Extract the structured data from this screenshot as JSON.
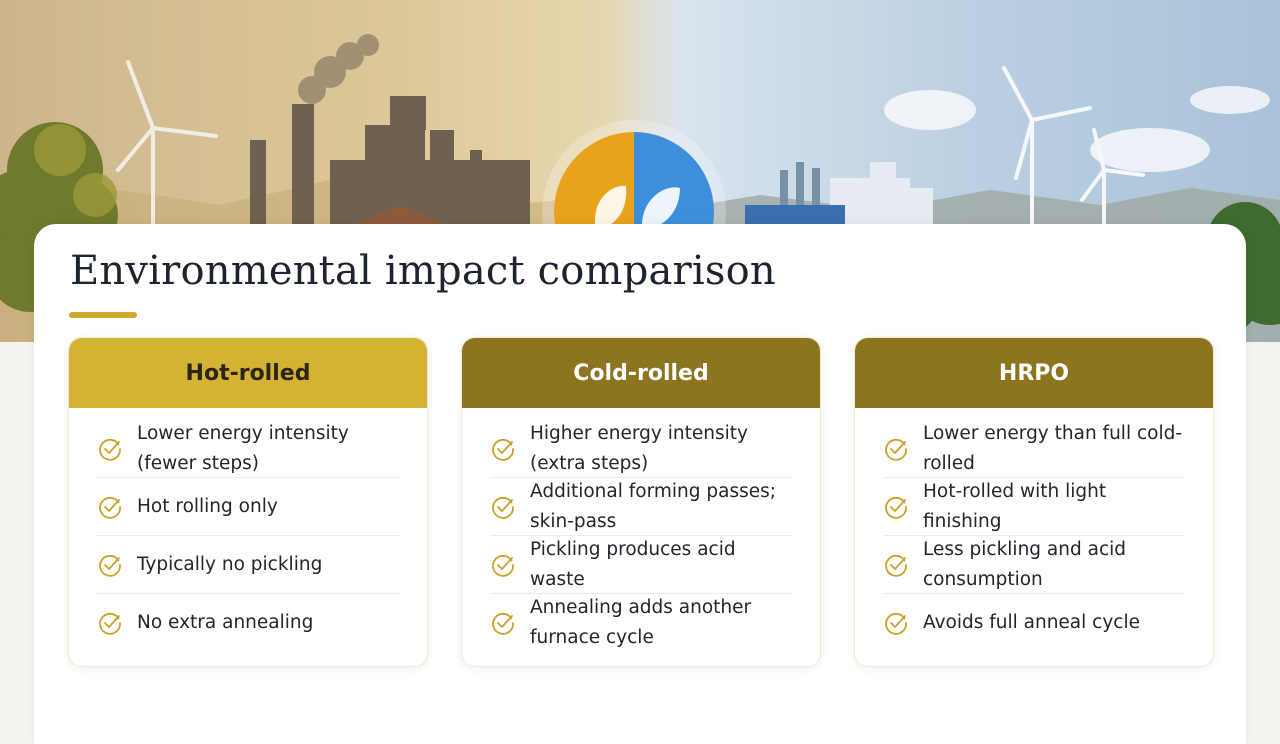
{
  "page": {
    "title": "Environmental impact comparison"
  },
  "colors": {
    "accent_gold": "#d1a82e",
    "header_hot_rolled": "#d4b233",
    "header_dark_olive": "#8d7520",
    "check_icon": "#c9a22a"
  },
  "columns": [
    {
      "heading": "Hot-rolled",
      "items": [
        "Lower energy intensity (fewer steps)",
        "Hot rolling only",
        "Typically no pickling",
        "No extra annealing"
      ]
    },
    {
      "heading": "Cold-rolled",
      "items": [
        "Higher energy intensity (extra steps)",
        "Additional forming passes; skin-pass",
        "Pickling produces acid waste",
        "Annealing adds another furnace cycle"
      ]
    },
    {
      "heading": "HRPO",
      "items": [
        "Lower energy than full cold-rolled",
        "Hot-rolled with light finishing",
        "Less pickling and acid consumption",
        "Avoids full anneal cycle"
      ]
    }
  ],
  "icons": {
    "item_marker": "check-circle-icon",
    "hero_emblem": "leaf-icon"
  }
}
